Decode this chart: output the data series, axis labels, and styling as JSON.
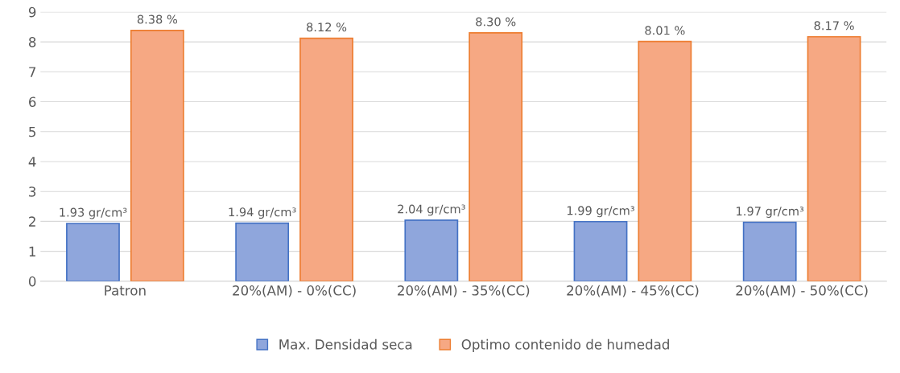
{
  "chart_data": {
    "type": "bar",
    "categories": [
      "Patron",
      "20%(AM) - 0%(CC)",
      "20%(AM) - 35%(CC)",
      "20%(AM) - 45%(CC)",
      "20%(AM) - 50%(CC)"
    ],
    "series": [
      {
        "name": "Max. Densidad seca",
        "color": "#8fa6dc",
        "values": [
          1.93,
          1.94,
          2.04,
          1.99,
          1.97
        ],
        "value_labels": [
          "1.93 gr/cm³",
          "1.94 gr/cm³",
          "2.04 gr/cm³",
          "1.99 gr/cm³",
          "1.97 gr/cm³"
        ]
      },
      {
        "name": "Optimo contenido de humedad",
        "color": "#f6a883",
        "values": [
          8.38,
          8.12,
          8.3,
          8.01,
          8.17
        ],
        "value_labels": [
          "8.38 %",
          "8.12 %",
          "8.30 %",
          "8.01 %",
          "8.17 %"
        ]
      }
    ],
    "ylim": [
      0,
      9
    ],
    "yticks": [
      0,
      1,
      2,
      3,
      4,
      5,
      6,
      7,
      8,
      9
    ],
    "grid": "y",
    "legend": "bottom"
  }
}
